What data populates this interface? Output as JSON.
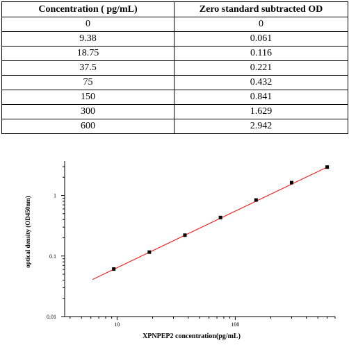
{
  "table": {
    "headers": [
      "Concentration ( pg/mL)",
      "Zero standard subtracted OD"
    ],
    "rows": [
      [
        "0",
        "0"
      ],
      [
        "9.38",
        "0.061"
      ],
      [
        "18.75",
        "0.116"
      ],
      [
        "37.5",
        "0.221"
      ],
      [
        "75",
        "0.432"
      ],
      [
        "150",
        "0.841"
      ],
      [
        "300",
        "1.629"
      ],
      [
        "600",
        "2.942"
      ]
    ]
  },
  "chart_data": {
    "type": "scatter",
    "title": "",
    "xlabel": "XPNPEP2  concentration(pg/mL)",
    "ylabel": "optical density (OD450nm)",
    "x_scale": "log",
    "y_scale": "log",
    "xlim": [
      3.6,
      700
    ],
    "ylim": [
      0.01,
      3.7
    ],
    "x_ticks": [
      10,
      100
    ],
    "x_tick_labels": [
      "10",
      "100"
    ],
    "y_ticks": [
      0.01,
      0.1,
      1
    ],
    "y_tick_labels": [
      "0.01",
      "0.1",
      "1"
    ],
    "grid": false,
    "series": [
      {
        "x": [
          9.38,
          18.75,
          37.5,
          75,
          150,
          300,
          600
        ],
        "y": [
          0.061,
          0.116,
          0.221,
          0.432,
          0.841,
          1.629,
          2.942
        ],
        "marker": "square",
        "color": "#000000"
      }
    ],
    "fit_line": {
      "x": [
        6.2,
        600
      ],
      "y": [
        0.041,
        2.942
      ],
      "color": "#ff0000"
    }
  }
}
